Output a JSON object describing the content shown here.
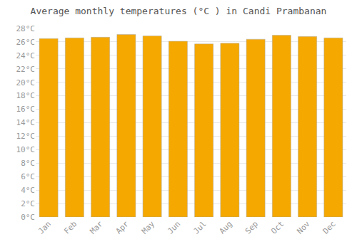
{
  "chart_data": {
    "type": "bar",
    "title": "Average monthly temperatures (°C ) in Candi Prambanan",
    "categories": [
      "Jan",
      "Feb",
      "Mar",
      "Apr",
      "May",
      "Jun",
      "Jul",
      "Aug",
      "Sep",
      "Oct",
      "Nov",
      "Dec"
    ],
    "values": [
      26.5,
      26.6,
      26.7,
      27.1,
      26.9,
      26.1,
      25.7,
      25.8,
      26.4,
      27.0,
      26.8,
      26.6
    ],
    "color": "#F5A800",
    "ylim": [
      0,
      28
    ],
    "yticks": [
      {
        "value": 0,
        "label": "0°C"
      },
      {
        "value": 2,
        "label": "2°C"
      },
      {
        "value": 4,
        "label": "4°C"
      },
      {
        "value": 6,
        "label": "6°C"
      },
      {
        "value": 8,
        "label": "8°C"
      },
      {
        "value": 10,
        "label": "10°C"
      },
      {
        "value": 12,
        "label": "12°C"
      },
      {
        "value": 14,
        "label": "14°C"
      },
      {
        "value": 16,
        "label": "16°C"
      },
      {
        "value": 18,
        "label": "18°C"
      },
      {
        "value": 20,
        "label": "20°C"
      },
      {
        "value": 22,
        "label": "22°C"
      },
      {
        "value": 24,
        "label": "24°C"
      },
      {
        "value": 26,
        "label": "26°C"
      },
      {
        "value": 28,
        "label": "28°C"
      }
    ],
    "grid": true
  }
}
